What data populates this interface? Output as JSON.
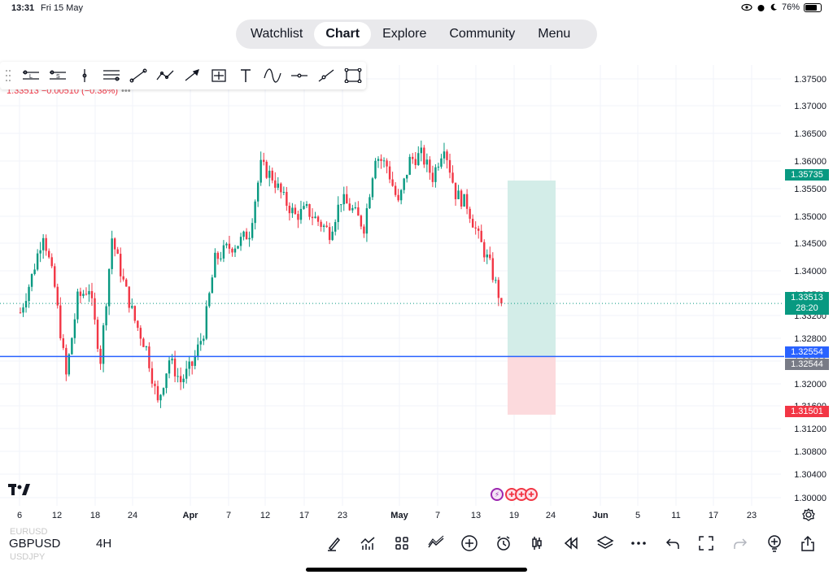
{
  "status_bar": {
    "time": "13:31",
    "date": "Fri 15 May",
    "battery": "76%",
    "battery_level": 0.76
  },
  "nav": {
    "tabs": [
      {
        "label": "Watchlist",
        "active": false
      },
      {
        "label": "Chart",
        "active": true
      },
      {
        "label": "Explore",
        "active": false
      },
      {
        "label": "Community",
        "active": false
      },
      {
        "label": "Menu",
        "active": false
      }
    ]
  },
  "toolbar": {
    "tools": [
      "horizontal-line-labeled-icon",
      "horizontal-line-s-icon",
      "vertical-line-icon",
      "parallel-channel-icon",
      "trend-line-icon",
      "path-icon",
      "arrow-line-icon",
      "crosshair-box-icon",
      "text-icon",
      "curve-icon",
      "horizontal-ray-icon",
      "ray-icon",
      "rectangle-icon"
    ]
  },
  "legend": {
    "text": "1.33513 −0.00510 (−0.38%)",
    "dots": "•••"
  },
  "colors": {
    "up": "#089981",
    "down": "#f23645",
    "blue_line": "#2962ff",
    "grey_badge": "#787b86",
    "target_zone": "#d3ede8",
    "stop_zone": "#fcdadd"
  },
  "chart_data": {
    "type": "candlestick",
    "symbol": "GBPUSD",
    "interval": "4H",
    "y_axis": {
      "ticks": [
        "1.37500",
        "1.37000",
        "1.36500",
        "1.36000",
        "1.35500",
        "1.35000",
        "1.34500",
        "1.34000",
        "1.33500",
        "1.33200",
        "1.32800",
        "1.32400",
        "1.32000",
        "1.31600",
        "1.31200",
        "1.30800",
        "1.30400",
        "1.30000"
      ]
    },
    "x_axis": {
      "ticks": [
        "6",
        "12",
        "18",
        "24",
        "Apr",
        "7",
        "12",
        "17",
        "23",
        "May",
        "7",
        "13",
        "19",
        "24",
        "Jun",
        "5",
        "11",
        "17",
        "23"
      ]
    },
    "price_path": [
      [
        0,
        1.3335
      ],
      [
        4,
        1.34
      ],
      [
        8,
        1.348
      ],
      [
        12,
        1.338
      ],
      [
        16,
        1.322
      ],
      [
        20,
        1.336
      ],
      [
        24,
        1.338
      ],
      [
        28,
        1.325
      ],
      [
        32,
        1.347
      ],
      [
        36,
        1.339
      ],
      [
        40,
        1.332
      ],
      [
        44,
        1.327
      ],
      [
        48,
        1.317
      ],
      [
        52,
        1.325
      ],
      [
        56,
        1.321
      ],
      [
        60,
        1.324
      ],
      [
        64,
        1.33
      ],
      [
        68,
        1.343
      ],
      [
        72,
        1.345
      ],
      [
        76,
        1.346
      ],
      [
        80,
        1.348
      ],
      [
        84,
        1.36
      ],
      [
        88,
        1.358
      ],
      [
        92,
        1.354
      ],
      [
        96,
        1.351
      ],
      [
        100,
        1.352
      ],
      [
        104,
        1.35
      ],
      [
        108,
        1.348
      ],
      [
        112,
        1.354
      ],
      [
        116,
        1.352
      ],
      [
        120,
        1.349
      ],
      [
        124,
        1.362
      ],
      [
        128,
        1.36
      ],
      [
        132,
        1.353
      ],
      [
        136,
        1.361
      ],
      [
        140,
        1.362
      ],
      [
        144,
        1.358
      ],
      [
        148,
        1.364
      ],
      [
        152,
        1.355
      ],
      [
        156,
        1.353
      ],
      [
        160,
        1.347
      ],
      [
        164,
        1.342
      ],
      [
        168,
        1.3351
      ]
    ],
    "last_price": "1.33513",
    "countdown": "28:20",
    "horizontal_line": "1.32554",
    "crosshair_price": "1.32544",
    "position": {
      "entry": 1.32554,
      "target": "1.35735",
      "stop": "1.31501"
    }
  },
  "bottom": {
    "prev_symbol": "EURUSD",
    "next_symbol": "USDJPY",
    "icons": [
      "brush-icon",
      "indicators-icon",
      "grid-icon",
      "compare-icon",
      "add-icon",
      "alert-clock-icon",
      "candles-icon",
      "replay-icon",
      "layers-icon",
      "more-icon",
      "undo-icon",
      "fullscreen-icon",
      "redo-icon",
      "bulb-add-icon",
      "share-icon"
    ]
  }
}
